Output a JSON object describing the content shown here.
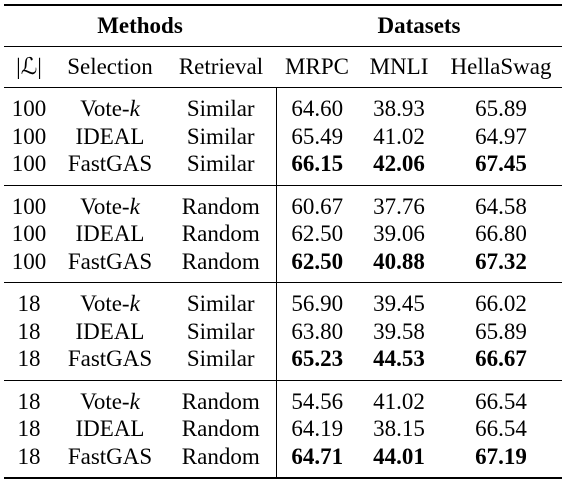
{
  "header": {
    "methods": "Methods",
    "datasets": "Datasets"
  },
  "columns": {
    "l": "|ℒ|",
    "selection": "Selection",
    "retrieval": "Retrieval",
    "mrpc": "MRPC",
    "mnli": "MNLI",
    "hellaswag": "HellaSwag"
  },
  "groups": [
    {
      "rows": [
        {
          "l": "100",
          "selection": "Vote-",
          "selection_var": "k",
          "retrieval": "Similar",
          "mrpc": "64.60",
          "mnli": "38.93",
          "hellaswag": "65.89"
        },
        {
          "l": "100",
          "selection": "IDEAL",
          "selection_var": "",
          "retrieval": "Similar",
          "mrpc": "65.49",
          "mnli": "41.02",
          "hellaswag": "64.97"
        },
        {
          "l": "100",
          "selection": "FastGAS",
          "selection_var": "",
          "retrieval": "Similar",
          "mrpc": "66.15",
          "mnli": "42.06",
          "hellaswag": "67.45"
        }
      ]
    },
    {
      "rows": [
        {
          "l": "100",
          "selection": "Vote-",
          "selection_var": "k",
          "retrieval": "Random",
          "mrpc": "60.67",
          "mnli": "37.76",
          "hellaswag": "64.58"
        },
        {
          "l": "100",
          "selection": "IDEAL",
          "selection_var": "",
          "retrieval": "Random",
          "mrpc": "62.50",
          "mnli": "39.06",
          "hellaswag": "66.80"
        },
        {
          "l": "100",
          "selection": "FastGAS",
          "selection_var": "",
          "retrieval": "Random",
          "mrpc": "62.50",
          "mnli": "40.88",
          "hellaswag": "67.32"
        }
      ]
    },
    {
      "rows": [
        {
          "l": "18",
          "selection": "Vote-",
          "selection_var": "k",
          "retrieval": "Similar",
          "mrpc": "56.90",
          "mnli": "39.45",
          "hellaswag": "66.02"
        },
        {
          "l": "18",
          "selection": "IDEAL",
          "selection_var": "",
          "retrieval": "Similar",
          "mrpc": "63.80",
          "mnli": "39.58",
          "hellaswag": "65.89"
        },
        {
          "l": "18",
          "selection": "FastGAS",
          "selection_var": "",
          "retrieval": "Similar",
          "mrpc": "65.23",
          "mnli": "44.53",
          "hellaswag": "66.67"
        }
      ]
    },
    {
      "rows": [
        {
          "l": "18",
          "selection": "Vote-",
          "selection_var": "k",
          "retrieval": "Random",
          "mrpc": "54.56",
          "mnli": "41.02",
          "hellaswag": "66.54"
        },
        {
          "l": "18",
          "selection": "IDEAL",
          "selection_var": "",
          "retrieval": "Random",
          "mrpc": "64.19",
          "mnli": "38.15",
          "hellaswag": "66.54"
        },
        {
          "l": "18",
          "selection": "FastGAS",
          "selection_var": "",
          "retrieval": "Random",
          "mrpc": "64.71",
          "mnli": "44.01",
          "hellaswag": "67.19"
        }
      ]
    }
  ]
}
